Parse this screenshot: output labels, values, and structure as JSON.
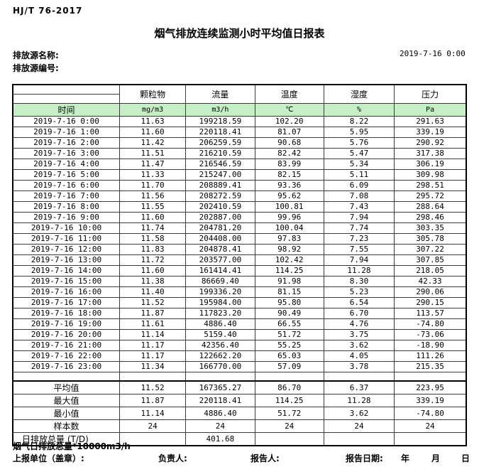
{
  "doc": {
    "standard_no": "HJ/T 76-2017",
    "title": "烟气排放连续监测小时平均值日报表",
    "source_name_label": "排放源名称:",
    "source_id_label": "排放源编号:",
    "datetime": "2019-7-16 0:00"
  },
  "colors": {
    "header_green": "#c6efc6",
    "border": "#000000"
  },
  "table": {
    "time_header": "时间",
    "columns": [
      {
        "name": "颗粒物",
        "unit": "mg/m3"
      },
      {
        "name": "流量",
        "unit": "m3/h"
      },
      {
        "name": "温度",
        "unit": "℃"
      },
      {
        "name": "湿度",
        "unit": "%"
      },
      {
        "name": "压力",
        "unit": "Pa"
      }
    ],
    "rows": [
      {
        "time": "2019-7-16 0:00",
        "values": [
          "11.63",
          "199218.59",
          "102.20",
          "8.22",
          "291.63"
        ]
      },
      {
        "time": "2019-7-16 1:00",
        "values": [
          "11.60",
          "220118.41",
          "81.07",
          "5.95",
          "339.19"
        ]
      },
      {
        "time": "2019-7-16 2:00",
        "values": [
          "11.42",
          "206259.59",
          "90.68",
          "5.76",
          "290.92"
        ]
      },
      {
        "time": "2019-7-16 3:00",
        "values": [
          "11.51",
          "216210.59",
          "82.42",
          "5.47",
          "317.38"
        ]
      },
      {
        "time": "2019-7-16 4:00",
        "values": [
          "11.47",
          "216546.59",
          "83.99",
          "5.34",
          "306.19"
        ]
      },
      {
        "time": "2019-7-16 5:00",
        "values": [
          "11.33",
          "215247.00",
          "82.15",
          "5.11",
          "309.98"
        ]
      },
      {
        "time": "2019-7-16 6:00",
        "values": [
          "11.70",
          "208889.41",
          "93.36",
          "6.09",
          "298.51"
        ]
      },
      {
        "time": "2019-7-16 7:00",
        "values": [
          "11.56",
          "208272.59",
          "95.62",
          "7.08",
          "295.72"
        ]
      },
      {
        "time": "2019-7-16 8:00",
        "values": [
          "11.55",
          "202410.59",
          "100.81",
          "7.43",
          "288.64"
        ]
      },
      {
        "time": "2019-7-16 9:00",
        "values": [
          "11.60",
          "202887.00",
          "99.96",
          "7.94",
          "298.46"
        ]
      },
      {
        "time": "2019-7-16 10:00",
        "values": [
          "11.74",
          "204781.20",
          "100.04",
          "7.74",
          "303.35"
        ]
      },
      {
        "time": "2019-7-16 11:00",
        "values": [
          "11.58",
          "204408.00",
          "97.83",
          "7.23",
          "305.78"
        ]
      },
      {
        "time": "2019-7-16 12:00",
        "values": [
          "11.83",
          "204878.41",
          "98.92",
          "7.55",
          "307.22"
        ]
      },
      {
        "time": "2019-7-16 13:00",
        "values": [
          "11.72",
          "203577.00",
          "102.42",
          "7.94",
          "307.85"
        ]
      },
      {
        "time": "2019-7-16 14:00",
        "values": [
          "11.60",
          "161414.41",
          "114.25",
          "11.28",
          "218.05"
        ]
      },
      {
        "time": "2019-7-16 15:00",
        "values": [
          "11.38",
          "86669.40",
          "91.98",
          "8.30",
          "42.33"
        ]
      },
      {
        "time": "2019-7-16 16:00",
        "values": [
          "11.40",
          "199336.20",
          "81.15",
          "5.23",
          "290.06"
        ]
      },
      {
        "time": "2019-7-16 17:00",
        "values": [
          "11.52",
          "195984.00",
          "95.80",
          "6.54",
          "290.15"
        ]
      },
      {
        "time": "2019-7-16 18:00",
        "values": [
          "11.87",
          "117823.20",
          "90.49",
          "6.70",
          "113.57"
        ]
      },
      {
        "time": "2019-7-16 19:00",
        "values": [
          "11.61",
          "4886.40",
          "66.55",
          "4.76",
          "-74.80"
        ]
      },
      {
        "time": "2019-7-16 20:00",
        "values": [
          "11.14",
          "5159.40",
          "51.72",
          "3.75",
          "-73.06"
        ]
      },
      {
        "time": "2019-7-16 21:00",
        "values": [
          "11.17",
          "42356.40",
          "55.25",
          "3.62",
          "-18.90"
        ]
      },
      {
        "time": "2019-7-16 22:00",
        "values": [
          "11.17",
          "122662.20",
          "65.03",
          "4.05",
          "111.26"
        ]
      },
      {
        "time": "2019-7-16 23:00",
        "values": [
          "11.34",
          "166770.00",
          "57.09",
          "3.78",
          "215.35"
        ]
      }
    ],
    "summary": [
      {
        "label": "平均值",
        "left_align": false,
        "values": [
          "11.52",
          "167365.27",
          "86.70",
          "6.37",
          "223.95"
        ]
      },
      {
        "label": "最大值",
        "left_align": false,
        "values": [
          "11.87",
          "220118.41",
          "114.25",
          "11.28",
          "339.19"
        ]
      },
      {
        "label": "最小值",
        "left_align": false,
        "values": [
          "11.14",
          "4886.40",
          "51.72",
          "3.62",
          "-74.80"
        ]
      },
      {
        "label": "样本数",
        "left_align": false,
        "values": [
          "24",
          "24",
          "24",
          "24",
          "24"
        ]
      },
      {
        "label": "日排放总量 (T/D)",
        "left_align": true,
        "values": [
          "",
          "401.68",
          "",
          "",
          ""
        ]
      }
    ]
  },
  "footer": {
    "note": "烟气日排放总量*10000m3/h",
    "report_unit_label": "上报单位（盖章）:",
    "responsible_label": "负责人:",
    "reporter_label": "报告人:",
    "report_date_label": "报告日期:",
    "year_label": "年",
    "month_label": "月",
    "day_label": "日"
  }
}
